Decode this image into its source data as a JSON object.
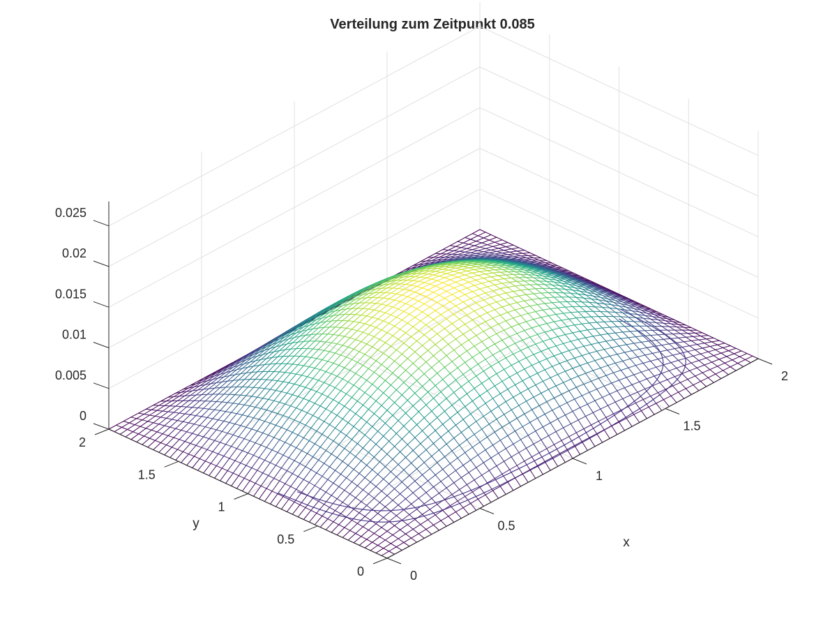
{
  "chart_data": {
    "type": "surface",
    "title": "Verteilung zum Zeitpunkt 0.085",
    "xlabel": "x",
    "ylabel": "y",
    "zlabel": "",
    "xlim": [
      0,
      2
    ],
    "ylim": [
      0,
      2
    ],
    "zlim": [
      0,
      0.028
    ],
    "x_ticks": [
      "0",
      "0.5",
      "1",
      "1.5",
      "2"
    ],
    "y_ticks": [
      "0",
      "0.5",
      "1",
      "1.5",
      "2"
    ],
    "z_ticks": [
      "0",
      "0.005",
      "0.01",
      "0.015",
      "0.02",
      "0.025"
    ],
    "x_tick_values": [
      0,
      0.5,
      1,
      1.5,
      2
    ],
    "y_tick_values": [
      0,
      0.5,
      1,
      1.5,
      2
    ],
    "z_tick_values": [
      0,
      0.005,
      0.01,
      0.015,
      0.02,
      0.025
    ],
    "grid": true,
    "colormap": "viridis",
    "surface": {
      "grid_points": 50,
      "peak_x": 1.0,
      "peak_y": 1.0,
      "peak_value": 0.0125,
      "edge_value": 0.0
    },
    "contour_at_base": true
  },
  "colors": {
    "background": "#ffffff",
    "text": "#262626",
    "grid": "#e0e0e0",
    "colormap_low": "#440154",
    "colormap_high": "#fde725"
  }
}
